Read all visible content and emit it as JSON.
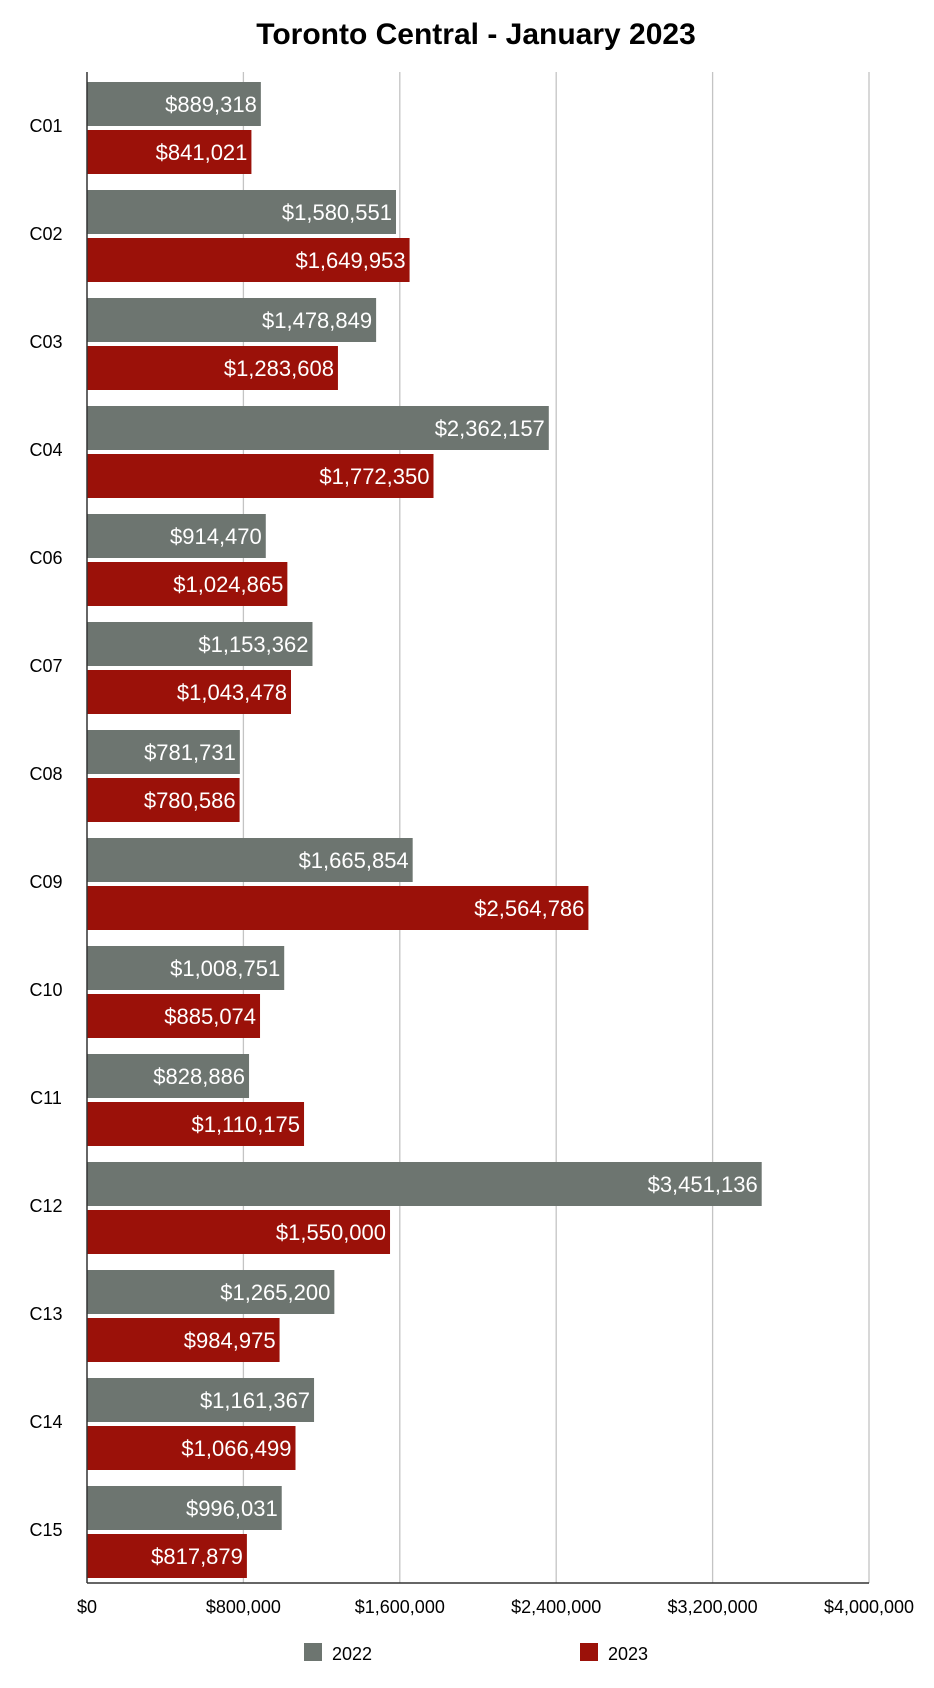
{
  "chart_data": {
    "type": "bar",
    "orientation": "horizontal",
    "title": "Toronto Central - January 2023",
    "categories": [
      "C01",
      "C02",
      "C03",
      "C04",
      "C06",
      "C07",
      "C08",
      "C09",
      "C10",
      "C11",
      "C12",
      "C13",
      "C14",
      "C15"
    ],
    "series": [
      {
        "name": "2022",
        "color": "#6d7570",
        "values": [
          889318,
          1580551,
          1478849,
          2362157,
          914470,
          1153362,
          781731,
          1665854,
          1008751,
          828886,
          3451136,
          1265200,
          1161367,
          996031
        ],
        "labels": [
          "$889,318",
          "$1,580,551",
          "$1,478,849",
          "$2,362,157",
          "$914,470",
          "$1,153,362",
          "$781,731",
          "$1,665,854",
          "$1,008,751",
          "$828,886",
          "$3,451,136",
          "$1,265,200",
          "$1,161,367",
          "$996,031"
        ]
      },
      {
        "name": "2023",
        "color": "#9b1109",
        "values": [
          841021,
          1649953,
          1283608,
          1772350,
          1024865,
          1043478,
          780586,
          2564786,
          885074,
          1110175,
          1550000,
          984975,
          1066499,
          817879
        ],
        "labels": [
          "$841,021",
          "$1,649,953",
          "$1,283,608",
          "$1,772,350",
          "$1,024,865",
          "$1,043,478",
          "$780,586",
          "$2,564,786",
          "$885,074",
          "$1,110,175",
          "$1,550,000",
          "$984,975",
          "$1,066,499",
          "$817,879"
        ]
      }
    ],
    "xlim": [
      0,
      4000000
    ],
    "xticks": [
      0,
      800000,
      1600000,
      2400000,
      3200000,
      4000000
    ],
    "xtick_labels": [
      "$0",
      "$800,000",
      "$1,600,000",
      "$2,400,000",
      "$3,200,000",
      "$4,000,000"
    ],
    "xlabel": "",
    "ylabel": "",
    "grid": true,
    "legend": "bottom"
  }
}
